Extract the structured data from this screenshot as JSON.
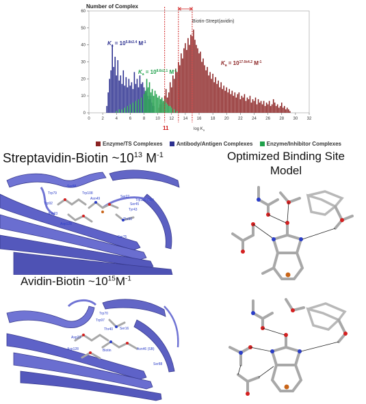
{
  "chart_data": {
    "type": "bar",
    "ylabel": "Number of Complex",
    "xlabel": "log K",
    "xlabel_subscript": "a",
    "xlim": [
      0,
      32
    ],
    "ylim": [
      0,
      60
    ],
    "x_ticks": [
      0,
      2,
      4,
      6,
      8,
      10,
      12,
      14,
      16,
      18,
      20,
      22,
      24,
      26,
      28,
      30,
      32
    ],
    "y_ticks": [
      0,
      10,
      20,
      30,
      40,
      50,
      60
    ],
    "bin_width": 0.2,
    "series": [
      {
        "name": "Enzyme/TS Complexes",
        "color": "#8b2323",
        "x": [
          10.2,
          10.4,
          10.6,
          10.8,
          11.0,
          11.2,
          11.4,
          11.6,
          11.8,
          12.0,
          12.2,
          12.4,
          12.6,
          12.8,
          13.0,
          13.2,
          13.4,
          13.6,
          13.8,
          14.0,
          14.2,
          14.4,
          14.6,
          14.8,
          15.0,
          15.2,
          15.4,
          15.6,
          15.8,
          16.0,
          16.2,
          16.4,
          16.6,
          16.8,
          17.0,
          17.2,
          17.4,
          17.6,
          17.8,
          18.0,
          18.2,
          18.4,
          18.6,
          18.8,
          19.0,
          19.2,
          19.4,
          19.6,
          19.8,
          20.0,
          20.2,
          20.4,
          20.6,
          20.8,
          21.0,
          21.2,
          21.4,
          21.6,
          21.8,
          22.0,
          22.2,
          22.4,
          22.6,
          22.8,
          23.0,
          23.2,
          23.4,
          23.6,
          23.8,
          24.0,
          24.2,
          24.4,
          24.6,
          24.8,
          25.0,
          25.2,
          25.4,
          25.6,
          25.8,
          26.0,
          26.2,
          26.4,
          26.6,
          26.8,
          27.0,
          27.2,
          27.4,
          27.6,
          27.8,
          28.0,
          28.2,
          28.4,
          28.6,
          28.8,
          29.0,
          29.2
        ],
        "values": [
          3,
          5,
          8,
          6,
          10,
          14,
          9,
          12,
          18,
          15,
          22,
          20,
          26,
          24,
          30,
          28,
          35,
          32,
          38,
          41,
          37,
          44,
          40,
          46,
          45,
          49,
          43,
          40,
          38,
          35,
          36,
          30,
          32,
          28,
          25,
          27,
          22,
          24,
          20,
          23,
          18,
          21,
          17,
          19,
          15,
          18,
          14,
          16,
          13,
          15,
          12,
          14,
          11,
          13,
          10,
          12,
          9,
          11,
          12,
          8,
          10,
          9,
          11,
          7,
          9,
          8,
          10,
          6,
          8,
          7,
          9,
          5,
          8,
          6,
          7,
          5,
          7,
          4,
          6,
          5,
          7,
          4,
          5,
          8,
          6,
          4,
          5,
          3,
          4,
          6,
          3,
          4,
          2,
          3,
          2,
          1
        ]
      },
      {
        "name": "Antibody/Antigen Complexes",
        "color": "#2b2f8f",
        "x": [
          2.6,
          2.8,
          3.0,
          3.2,
          3.4,
          3.6,
          3.8,
          4.0,
          4.2,
          4.4,
          4.6,
          4.8,
          5.0,
          5.2,
          5.4,
          5.6,
          5.8,
          6.0,
          6.2,
          6.4,
          6.6,
          6.8,
          7.0,
          7.2,
          7.4,
          7.6,
          7.8,
          8.0,
          8.2,
          8.4,
          8.6,
          8.8,
          9.0,
          9.2,
          9.4
        ],
        "values": [
          4,
          12,
          20,
          25,
          40,
          27,
          33,
          22,
          31,
          19,
          22,
          17,
          25,
          16,
          21,
          15,
          20,
          16,
          18,
          14,
          24,
          17,
          20,
          15,
          22,
          17,
          18,
          15,
          12,
          14,
          10,
          8,
          10,
          6,
          4
        ]
      },
      {
        "name": "Enzyme/Inhibitor Complexes",
        "color": "#1fa04a",
        "x": [
          4.0,
          4.4,
          4.8,
          5.2,
          5.6,
          6.0,
          6.4,
          6.8,
          7.2,
          7.6,
          8.0,
          8.2,
          8.4,
          8.6,
          8.8,
          9.0,
          9.2,
          9.4,
          9.6,
          9.8,
          10.0,
          10.2,
          10.4,
          10.6,
          10.8,
          11.0,
          11.2,
          11.4,
          11.6,
          11.8,
          12.0,
          12.4,
          12.8
        ],
        "values": [
          1,
          2,
          2,
          3,
          4,
          5,
          6,
          7,
          8,
          9,
          11,
          13,
          20,
          15,
          18,
          12,
          14,
          10,
          13,
          11,
          9,
          10,
          8,
          9,
          7,
          8,
          6,
          5,
          4,
          4,
          3,
          2,
          1
        ]
      }
    ],
    "annotations": [
      {
        "text": "K",
        "sub": "a",
        "mid": " = 10",
        "sup": "5.8±2.4",
        "unit": " M",
        "unit_sup": "-1",
        "color": "#2b2f8f"
      },
      {
        "text": "K",
        "sub": "a",
        "mid": " = 10",
        "sup": "8.6±2.1",
        "unit": " M",
        "unit_sup": "-1",
        "color": "#1fa04a"
      },
      {
        "text": "K",
        "sub": "a",
        "mid": " = 10",
        "sup": "17.0±4.2",
        "unit": " M",
        "unit_sup": "-1",
        "color": "#8b2323"
      },
      {
        "text": "Biotin-Strept(avidin)",
        "color": "#333333"
      },
      {
        "text": "11",
        "color": "#cc1111"
      }
    ],
    "reference_lines": [
      {
        "x": 11,
        "color": "#cc1111",
        "label": "11"
      },
      {
        "x": 13,
        "color": "#cc1111"
      },
      {
        "x": 15,
        "color": "#cc1111"
      }
    ],
    "bracket": {
      "from": 13,
      "to": 15,
      "color": "#cc1111"
    }
  },
  "legend": {
    "items": [
      {
        "label": "Enzyme/TS Complexes",
        "color": "#8b2323"
      },
      {
        "label": "Antibody/Antigen Complexes",
        "color": "#2b2f8f"
      },
      {
        "label": "Enzyme/Inhibitor Complexes",
        "color": "#1fa04a"
      }
    ]
  },
  "panels": {
    "streptavidin": {
      "title": "Streptavidin-Biotin ~10",
      "sup": "13",
      "unit": " M",
      "unit_sup": "-1"
    },
    "avidin": {
      "title": "Avidin-Biotin ~10",
      "sup": "15",
      "unit": "M",
      "unit_sup": "-1"
    },
    "model": {
      "title": "Optimized Binding Site Model"
    }
  },
  "residues": {
    "streptavidin": [
      "Ser88",
      "Trp79",
      "Trp92",
      "Trp108",
      "Asn23",
      "Ser27",
      "Ser45",
      "Tyr43",
      "Asp128",
      "Trp120 (SB)",
      "Asn49",
      "Ser75",
      "Thr90"
    ],
    "avidin": [
      "Trp70",
      "Trp97",
      "Asp23",
      "Thr40",
      "Asp128",
      "Ser16",
      "Biotin",
      "Asn46 (SB)",
      "Ser88"
    ]
  },
  "colors": {
    "ribbon": "#5e62c8",
    "ribbon_dark": "#383a8e",
    "carbon": "#a8a8a8",
    "oxygen": "#d42020",
    "nitrogen": "#2a3dc8",
    "sulfur": "#c86418"
  }
}
